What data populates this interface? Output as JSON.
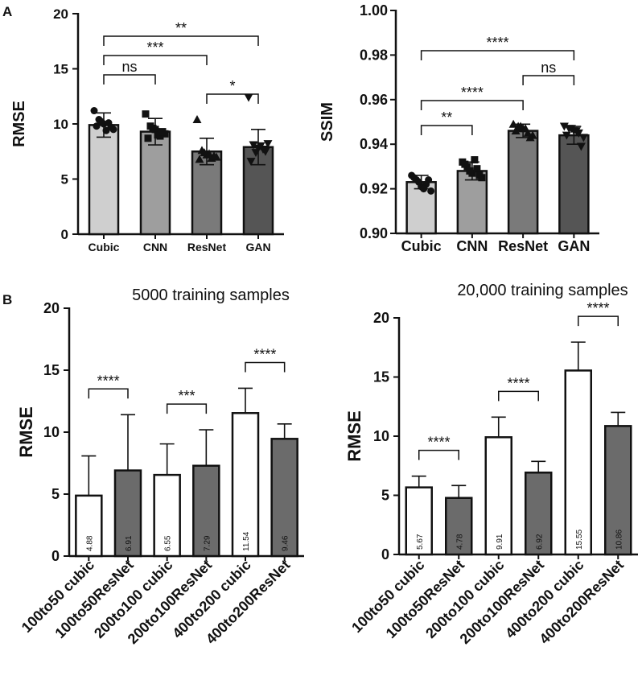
{
  "panel_labels": [
    "A",
    "B"
  ],
  "chart_data": [
    {
      "type": "bar",
      "panel": "A",
      "title": "",
      "xlabel": "",
      "ylabel": "RMSE",
      "categories": [
        "Cubic",
        "CNN",
        "ResNet",
        "GAN"
      ],
      "values": [
        9.9,
        9.3,
        7.5,
        7.9
      ],
      "errors": [
        1.1,
        1.2,
        1.2,
        1.6
      ],
      "bar_colors": [
        "#cfcfcf",
        "#9e9e9e",
        "#7a7a7a",
        "#555555"
      ],
      "point_markers": [
        "circle",
        "square",
        "triangle",
        "triangle-down"
      ],
      "points": [
        [
          11.2,
          10.4,
          10.0,
          10.1,
          9.5,
          9.8,
          10.2,
          9.4,
          9.7
        ],
        [
          10.9,
          9.8,
          9.5,
          8.9,
          9.1,
          8.7,
          9.6,
          9.0,
          9.3
        ],
        [
          10.4,
          7.6,
          7.2,
          6.9,
          7.0,
          6.8,
          7.4,
          7.3,
          7.1
        ],
        [
          12.4,
          8.1,
          7.8,
          7.7,
          8.2,
          6.6,
          7.4,
          8.0,
          7.5
        ]
      ],
      "ylim": [
        0,
        20
      ],
      "yticks": [
        "0",
        "5",
        "10",
        "15",
        "20"
      ],
      "significance": [
        {
          "from": 0,
          "to": 3,
          "label": "**"
        },
        {
          "from": 0,
          "to": 2,
          "label": "***"
        },
        {
          "from": 0,
          "to": 1,
          "label": "ns"
        },
        {
          "from": 2,
          "to": 3,
          "label": "*"
        }
      ]
    },
    {
      "type": "bar",
      "panel": "A",
      "title": "",
      "xlabel": "",
      "ylabel": "SSIM",
      "categories": [
        "Cubic",
        "CNN",
        "ResNet",
        "GAN"
      ],
      "values": [
        0.923,
        0.928,
        0.946,
        0.944
      ],
      "errors": [
        0.003,
        0.004,
        0.003,
        0.004
      ],
      "bar_colors": [
        "#cfcfcf",
        "#9e9e9e",
        "#7a7a7a",
        "#555555"
      ],
      "point_markers": [
        "circle",
        "square",
        "triangle",
        "triangle-down"
      ],
      "points": [
        [
          0.926,
          0.924,
          0.921,
          0.922,
          0.919,
          0.925,
          0.923,
          0.92,
          0.924
        ],
        [
          0.932,
          0.93,
          0.927,
          0.929,
          0.925,
          0.931,
          0.928,
          0.933,
          0.926
        ],
        [
          0.949,
          0.948,
          0.947,
          0.945,
          0.944,
          0.946,
          0.948,
          0.947,
          0.943
        ],
        [
          0.948,
          0.947,
          0.946,
          0.945,
          0.943,
          0.944,
          0.947,
          0.946,
          0.939
        ]
      ],
      "ylim": [
        0.9,
        1.0
      ],
      "yticks": [
        "0.90",
        "0.92",
        "0.94",
        "0.96",
        "0.98",
        "1.00"
      ],
      "significance": [
        {
          "from": 0,
          "to": 3,
          "label": "****"
        },
        {
          "from": 2,
          "to": 3,
          "label": "ns"
        },
        {
          "from": 0,
          "to": 2,
          "label": "****"
        },
        {
          "from": 0,
          "to": 1,
          "label": "**"
        }
      ]
    },
    {
      "type": "bar",
      "panel": "B",
      "title": "5000 training samples",
      "xlabel": "",
      "ylabel": "RMSE",
      "categories": [
        "100to50 cubic",
        "100to50ResNet",
        "200to100 cubic",
        "200to100ResNet",
        "400to200 cubic",
        "400to200ResNet"
      ],
      "values": [
        4.88,
        6.91,
        6.55,
        7.29,
        11.54,
        9.46
      ],
      "value_labels": [
        "4.88",
        "6.91",
        "6.55",
        "7.29",
        "11.54",
        "9.46"
      ],
      "errors": [
        3.2,
        4.5,
        2.5,
        2.9,
        2.0,
        1.2
      ],
      "bar_colors": [
        "#ffffff",
        "#6b6b6b",
        "#ffffff",
        "#6b6b6b",
        "#ffffff",
        "#6b6b6b"
      ],
      "ylim": [
        0,
        20
      ],
      "yticks": [
        "0",
        "5",
        "10",
        "15",
        "20"
      ],
      "significance": [
        {
          "from": 0,
          "to": 1,
          "label": "****"
        },
        {
          "from": 2,
          "to": 3,
          "label": "***"
        },
        {
          "from": 4,
          "to": 5,
          "label": "****"
        }
      ]
    },
    {
      "type": "bar",
      "panel": "B",
      "title": "20,000 training samples",
      "xlabel": "",
      "ylabel": "RMSE",
      "categories": [
        "100to50 cubic",
        "100to50ResNet",
        "200to100 cubic",
        "200to100ResNet",
        "400to200 cubic",
        "400to200ResNet"
      ],
      "values": [
        5.67,
        4.78,
        9.91,
        6.92,
        15.55,
        10.86
      ],
      "value_labels": [
        "5.67",
        "4.78",
        "9.91",
        "6.92",
        "15.55",
        "10.86"
      ],
      "errors": [
        0.95,
        1.05,
        1.7,
        0.95,
        2.4,
        1.15
      ],
      "bar_colors": [
        "#ffffff",
        "#6b6b6b",
        "#ffffff",
        "#6b6b6b",
        "#ffffff",
        "#6b6b6b"
      ],
      "ylim": [
        0,
        20
      ],
      "yticks": [
        "0",
        "5",
        "10",
        "15",
        "20"
      ],
      "significance": [
        {
          "from": 0,
          "to": 1,
          "label": "****"
        },
        {
          "from": 2,
          "to": 3,
          "label": "****"
        },
        {
          "from": 4,
          "to": 5,
          "label": "****"
        }
      ]
    }
  ]
}
